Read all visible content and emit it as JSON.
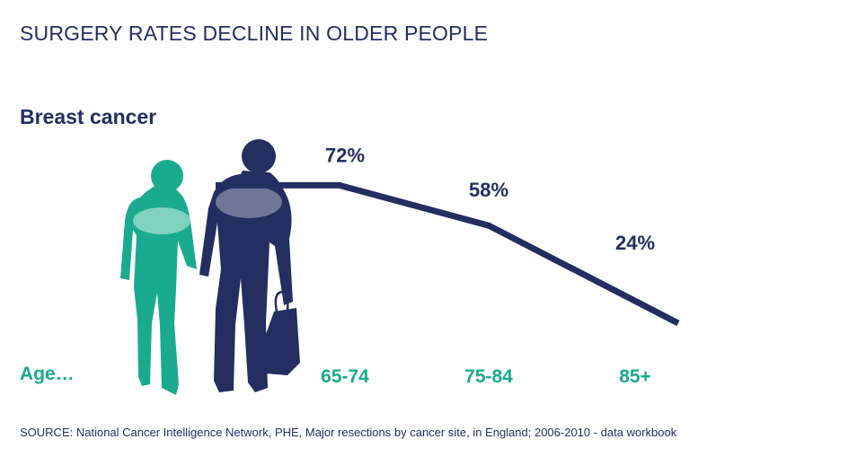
{
  "title": "SURGERY RATES DECLINE IN OLDER PEOPLE",
  "source": "SOURCE: National Cancer Intelligence Network, PHE, Major resections by cancer site, in England; 2006-2010 - data workbook",
  "age_prefix": "Age…",
  "colors": {
    "navy": "#232e61",
    "teal": "#1aab8e"
  },
  "chart_data": {
    "type": "line",
    "title": "SURGERY RATES DECLINE IN OLDER PEOPLE",
    "categories": [
      "65-74",
      "75-84",
      "85+"
    ],
    "series": [
      {
        "name": "Breast cancer",
        "values": [
          72,
          58,
          24
        ],
        "labels": [
          "72%",
          "58%",
          "24%"
        ]
      }
    ],
    "xlabel": "Age…",
    "ylabel": "",
    "ylim": [
      0,
      100
    ],
    "grid": false,
    "legend": "left"
  }
}
